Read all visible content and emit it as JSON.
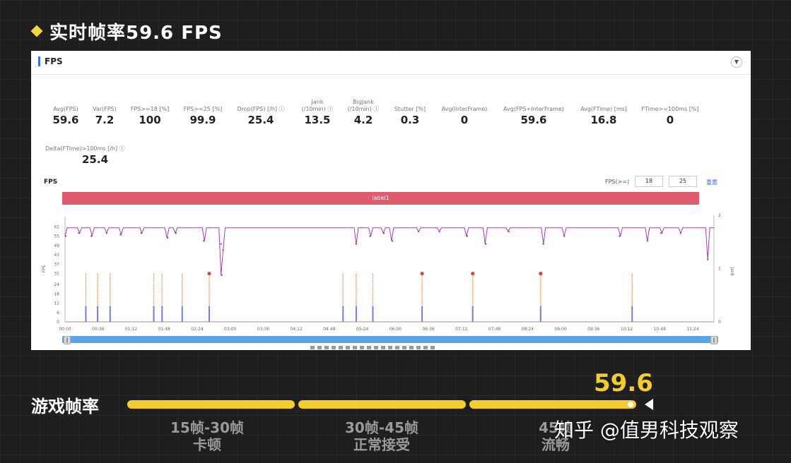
{
  "headline": {
    "text": "实时帧率59.6 FPS"
  },
  "panel": {
    "title": "FPS",
    "stats": [
      {
        "label": "Avg(FPS)",
        "value": "59.6"
      },
      {
        "label": "Var(FPS)",
        "value": "7.2"
      },
      {
        "label": "FPS>=18 [%]",
        "value": "100"
      },
      {
        "label": "FPS>=25 [%]",
        "value": "99.9"
      },
      {
        "label": "Drop(FPS) [/h]",
        "value": "25.4",
        "info": true
      },
      {
        "label": "Jank",
        "sublabel": "(/10min)",
        "value": "13.5",
        "info": true
      },
      {
        "label": "BigJank",
        "sublabel": "(/10min)",
        "value": "4.2",
        "info": true
      },
      {
        "label": "Stutter [%]",
        "value": "0.3"
      },
      {
        "label": "Avg(InterFrame)",
        "value": "0"
      },
      {
        "label": "Avg(FPS+InterFrame)",
        "value": "59.6"
      },
      {
        "label": "Avg(FTime) [ms]",
        "value": "16.8"
      },
      {
        "label": "FTime>=100ms [%]",
        "value": "0"
      },
      {
        "label": "Delta(FTime)>100ms [/h]",
        "value": "25.4",
        "info": true
      }
    ],
    "chart_title": "FPS",
    "threshold_label": "FPS(>=)",
    "threshold_1": "18",
    "threshold_2": "25",
    "reset_label": "重置",
    "label_bar": "label1"
  },
  "chart_data": {
    "type": "line",
    "x_ticks": [
      "00:00",
      "00:36",
      "01:12",
      "01:48",
      "02:24",
      "03:00",
      "03:36",
      "04:12",
      "04:48",
      "05:24",
      "06:00",
      "06:36",
      "07:12",
      "07:48",
      "08:24",
      "09:00",
      "09:36",
      "10:12",
      "10:48",
      "11:24"
    ],
    "y_ticks": [
      "0",
      "6",
      "12",
      "18",
      "24",
      "31",
      "37",
      "43",
      "49",
      "55",
      "61"
    ],
    "y_range": [
      0,
      63
    ],
    "y_label": "FPS",
    "y2_ticks": [
      "0",
      "1",
      "2"
    ],
    "y2_range": [
      0,
      2
    ],
    "y2_label": "Jank",
    "duration_s": 720,
    "fps_baseline": 60,
    "fps_dips": [
      {
        "t": 1,
        "v": 55
      },
      {
        "t": 20,
        "v": 57
      },
      {
        "t": 38,
        "v": 55
      },
      {
        "t": 60,
        "v": 57
      },
      {
        "t": 80,
        "v": 56
      },
      {
        "t": 110,
        "v": 57
      },
      {
        "t": 148,
        "v": 54
      },
      {
        "t": 160,
        "v": 57
      },
      {
        "t": 200,
        "v": 52
      },
      {
        "t": 225,
        "v": 50
      },
      {
        "t": 226,
        "v": 30
      },
      {
        "t": 228,
        "v": 46
      },
      {
        "t": 420,
        "v": 50
      },
      {
        "t": 440,
        "v": 55
      },
      {
        "t": 460,
        "v": 57
      },
      {
        "t": 472,
        "v": 52
      },
      {
        "t": 510,
        "v": 58
      },
      {
        "t": 540,
        "v": 58
      },
      {
        "t": 580,
        "v": 55
      },
      {
        "t": 607,
        "v": 50
      },
      {
        "t": 640,
        "v": 58
      },
      {
        "t": 690,
        "v": 50
      },
      {
        "t": 720,
        "v": 55
      },
      {
        "t": 800,
        "v": 55
      },
      {
        "t": 840,
        "v": 52
      },
      {
        "t": 860,
        "v": 57
      },
      {
        "t": 888,
        "v": 57
      },
      {
        "t": 927,
        "v": 40
      }
    ],
    "jank_events": [
      {
        "t": 30,
        "big": false
      },
      {
        "t": 47,
        "big": false
      },
      {
        "t": 65,
        "big": false
      },
      {
        "t": 128,
        "big": false
      },
      {
        "t": 140,
        "big": false
      },
      {
        "t": 169,
        "big": false
      },
      {
        "t": 208,
        "big": true
      },
      {
        "t": 401,
        "big": false
      },
      {
        "t": 420,
        "big": false
      },
      {
        "t": 444,
        "big": false
      },
      {
        "t": 515,
        "big": true
      },
      {
        "t": 588,
        "big": true
      },
      {
        "t": 686,
        "big": true
      },
      {
        "t": 818,
        "big": false
      }
    ],
    "colors": {
      "fps": "#a23fb3",
      "jank": "#f2a05f",
      "bigjank": "#e23b3b",
      "frametime": "#6d7fd9"
    }
  },
  "game": {
    "section_label": "游戏帧率",
    "value": "59.6",
    "ranges": [
      {
        "fps": "15帧-30帧",
        "quality": "卡顿"
      },
      {
        "fps": "30帧-45帧",
        "quality": "正常接受"
      },
      {
        "fps": "45帧",
        "quality": "流畅"
      }
    ],
    "accent_color": "#f5cc2e"
  },
  "watermark": "知乎 @值男科技观察"
}
